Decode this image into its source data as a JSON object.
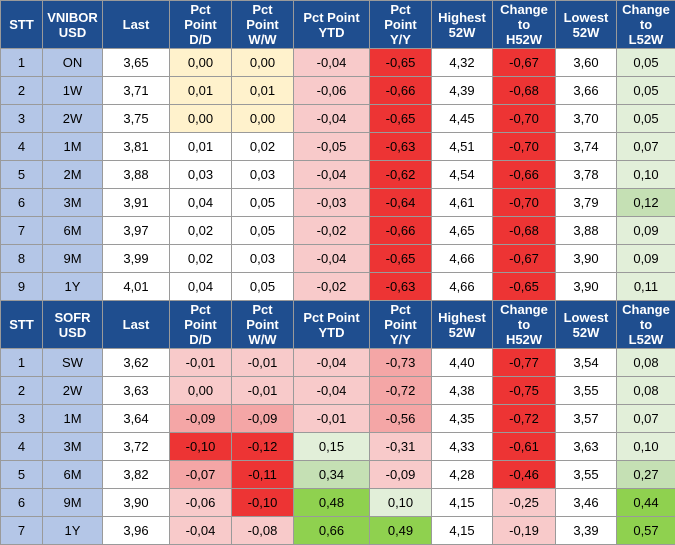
{
  "colors": {
    "header": "#1f4e8f",
    "label": "#b4c6e7",
    "neutral": "#ffffff",
    "yellow": "#fff2cc",
    "pink_light": "#f8caca",
    "pink": "#f4a6a6",
    "red": "#ed3434",
    "green_light": "#e2efd9",
    "green": "#c5e0b4",
    "green_strong": "#8fd14f"
  },
  "sections": [
    {
      "headers": [
        "STT",
        "VNIBOR\nUSD",
        "Last",
        "Pct\nPoint\nD/D",
        "Pct\nPoint\nW/W",
        "Pct Point\nYTD",
        "Pct\nPoint\nY/Y",
        "Highest\n52W",
        "Change\nto\nH52W",
        "Lowest\n52W",
        "Change\nto\nL52W"
      ],
      "rows": [
        {
          "stt": "1",
          "term": "ON",
          "last": "3,65",
          "dd": "0,00",
          "ww": "0,00",
          "ytd": "-0,04",
          "yy": "-0,65",
          "h52": "4,32",
          "ch": "-0,67",
          "l52": "3,60",
          "cl": "0,05"
        },
        {
          "stt": "2",
          "term": "1W",
          "last": "3,71",
          "dd": "0,01",
          "ww": "0,01",
          "ytd": "-0,06",
          "yy": "-0,66",
          "h52": "4,39",
          "ch": "-0,68",
          "l52": "3,66",
          "cl": "0,05"
        },
        {
          "stt": "3",
          "term": "2W",
          "last": "3,75",
          "dd": "0,00",
          "ww": "0,00",
          "ytd": "-0,04",
          "yy": "-0,65",
          "h52": "4,45",
          "ch": "-0,70",
          "l52": "3,70",
          "cl": "0,05"
        },
        {
          "stt": "4",
          "term": "1M",
          "last": "3,81",
          "dd": "0,01",
          "ww": "0,02",
          "ytd": "-0,05",
          "yy": "-0,63",
          "h52": "4,51",
          "ch": "-0,70",
          "l52": "3,74",
          "cl": "0,07"
        },
        {
          "stt": "5",
          "term": "2M",
          "last": "3,88",
          "dd": "0,03",
          "ww": "0,03",
          "ytd": "-0,04",
          "yy": "-0,62",
          "h52": "4,54",
          "ch": "-0,66",
          "l52": "3,78",
          "cl": "0,10"
        },
        {
          "stt": "6",
          "term": "3M",
          "last": "3,91",
          "dd": "0,04",
          "ww": "0,05",
          "ytd": "-0,03",
          "yy": "-0,64",
          "h52": "4,61",
          "ch": "-0,70",
          "l52": "3,79",
          "cl": "0,12"
        },
        {
          "stt": "7",
          "term": "6M",
          "last": "3,97",
          "dd": "0,02",
          "ww": "0,05",
          "ytd": "-0,02",
          "yy": "-0,66",
          "h52": "4,65",
          "ch": "-0,68",
          "l52": "3,88",
          "cl": "0,09"
        },
        {
          "stt": "8",
          "term": "9M",
          "last": "3,99",
          "dd": "0,02",
          "ww": "0,03",
          "ytd": "-0,04",
          "yy": "-0,65",
          "h52": "4,66",
          "ch": "-0,67",
          "l52": "3,90",
          "cl": "0,09"
        },
        {
          "stt": "9",
          "term": "1Y",
          "last": "4,01",
          "dd": "0,04",
          "ww": "0,05",
          "ytd": "-0,02",
          "yy": "-0,63",
          "h52": "4,66",
          "ch": "-0,65",
          "l52": "3,90",
          "cl": "0,11"
        }
      ],
      "fills": [
        {
          "dd": "yellow",
          "ww": "yellow",
          "ytd": "pink_light",
          "yy": "red",
          "ch": "red",
          "cl": "green_light"
        },
        {
          "dd": "yellow",
          "ww": "yellow",
          "ytd": "pink_light",
          "yy": "red",
          "ch": "red",
          "cl": "green_light"
        },
        {
          "dd": "yellow",
          "ww": "yellow",
          "ytd": "pink_light",
          "yy": "red",
          "ch": "red",
          "cl": "green_light"
        },
        {
          "dd": "neutral",
          "ww": "neutral",
          "ytd": "pink_light",
          "yy": "red",
          "ch": "red",
          "cl": "green_light"
        },
        {
          "dd": "neutral",
          "ww": "neutral",
          "ytd": "pink_light",
          "yy": "red",
          "ch": "red",
          "cl": "green_light"
        },
        {
          "dd": "neutral",
          "ww": "neutral",
          "ytd": "pink_light",
          "yy": "red",
          "ch": "red",
          "cl": "green"
        },
        {
          "dd": "neutral",
          "ww": "neutral",
          "ytd": "pink_light",
          "yy": "red",
          "ch": "red",
          "cl": "green_light"
        },
        {
          "dd": "neutral",
          "ww": "neutral",
          "ytd": "pink_light",
          "yy": "red",
          "ch": "red",
          "cl": "green_light"
        },
        {
          "dd": "neutral",
          "ww": "neutral",
          "ytd": "pink_light",
          "yy": "red",
          "ch": "red",
          "cl": "green_light"
        }
      ]
    },
    {
      "headers": [
        "STT",
        "SOFR USD",
        "Last",
        "Pct\nPoint\nD/D",
        "Pct\nPoint\nW/W",
        "Pct Point\nYTD",
        "Pct\nPoint\nY/Y",
        "Highest\n52W",
        "Change\nto\nH52W",
        "Lowest\n52W",
        "Change\nto\nL52W"
      ],
      "rows": [
        {
          "stt": "1",
          "term": "SW",
          "last": "3,62",
          "dd": "-0,01",
          "ww": "-0,01",
          "ytd": "-0,04",
          "yy": "-0,73",
          "h52": "4,40",
          "ch": "-0,77",
          "l52": "3,54",
          "cl": "0,08"
        },
        {
          "stt": "2",
          "term": "2W",
          "last": "3,63",
          "dd": "0,00",
          "ww": "-0,01",
          "ytd": "-0,04",
          "yy": "-0,72",
          "h52": "4,38",
          "ch": "-0,75",
          "l52": "3,55",
          "cl": "0,08"
        },
        {
          "stt": "3",
          "term": "1M",
          "last": "3,64",
          "dd": "-0,09",
          "ww": "-0,09",
          "ytd": "-0,01",
          "yy": "-0,56",
          "h52": "4,35",
          "ch": "-0,72",
          "l52": "3,57",
          "cl": "0,07"
        },
        {
          "stt": "4",
          "term": "3M",
          "last": "3,72",
          "dd": "-0,10",
          "ww": "-0,12",
          "ytd": "0,15",
          "yy": "-0,31",
          "h52": "4,33",
          "ch": "-0,61",
          "l52": "3,63",
          "cl": "0,10"
        },
        {
          "stt": "5",
          "term": "6M",
          "last": "3,82",
          "dd": "-0,07",
          "ww": "-0,11",
          "ytd": "0,34",
          "yy": "-0,09",
          "h52": "4,28",
          "ch": "-0,46",
          "l52": "3,55",
          "cl": "0,27"
        },
        {
          "stt": "6",
          "term": "9M",
          "last": "3,90",
          "dd": "-0,06",
          "ww": "-0,10",
          "ytd": "0,48",
          "yy": "0,10",
          "h52": "4,15",
          "ch": "-0,25",
          "l52": "3,46",
          "cl": "0,44"
        },
        {
          "stt": "7",
          "term": "1Y",
          "last": "3,96",
          "dd": "-0,04",
          "ww": "-0,08",
          "ytd": "0,66",
          "yy": "0,49",
          "h52": "4,15",
          "ch": "-0,19",
          "l52": "3,39",
          "cl": "0,57"
        }
      ],
      "fills": [
        {
          "dd": "pink_light",
          "ww": "pink_light",
          "ytd": "pink_light",
          "yy": "pink",
          "ch": "red",
          "cl": "green_light"
        },
        {
          "dd": "pink_light",
          "ww": "pink_light",
          "ytd": "pink_light",
          "yy": "pink",
          "ch": "red",
          "cl": "green_light"
        },
        {
          "dd": "pink",
          "ww": "pink",
          "ytd": "pink_light",
          "yy": "pink",
          "ch": "red",
          "cl": "green_light"
        },
        {
          "dd": "red",
          "ww": "red",
          "ytd": "green_light",
          "yy": "pink_light",
          "ch": "red",
          "cl": "green_light"
        },
        {
          "dd": "pink",
          "ww": "red",
          "ytd": "green",
          "yy": "pink_light",
          "ch": "red",
          "cl": "green"
        },
        {
          "dd": "pink_light",
          "ww": "red",
          "ytd": "green_strong",
          "yy": "green_light",
          "ch": "pink_light",
          "cl": "green_strong"
        },
        {
          "dd": "pink_light",
          "ww": "pink_light",
          "ytd": "green_strong",
          "yy": "green_strong",
          "ch": "pink_light",
          "cl": "green_strong"
        }
      ]
    }
  ]
}
